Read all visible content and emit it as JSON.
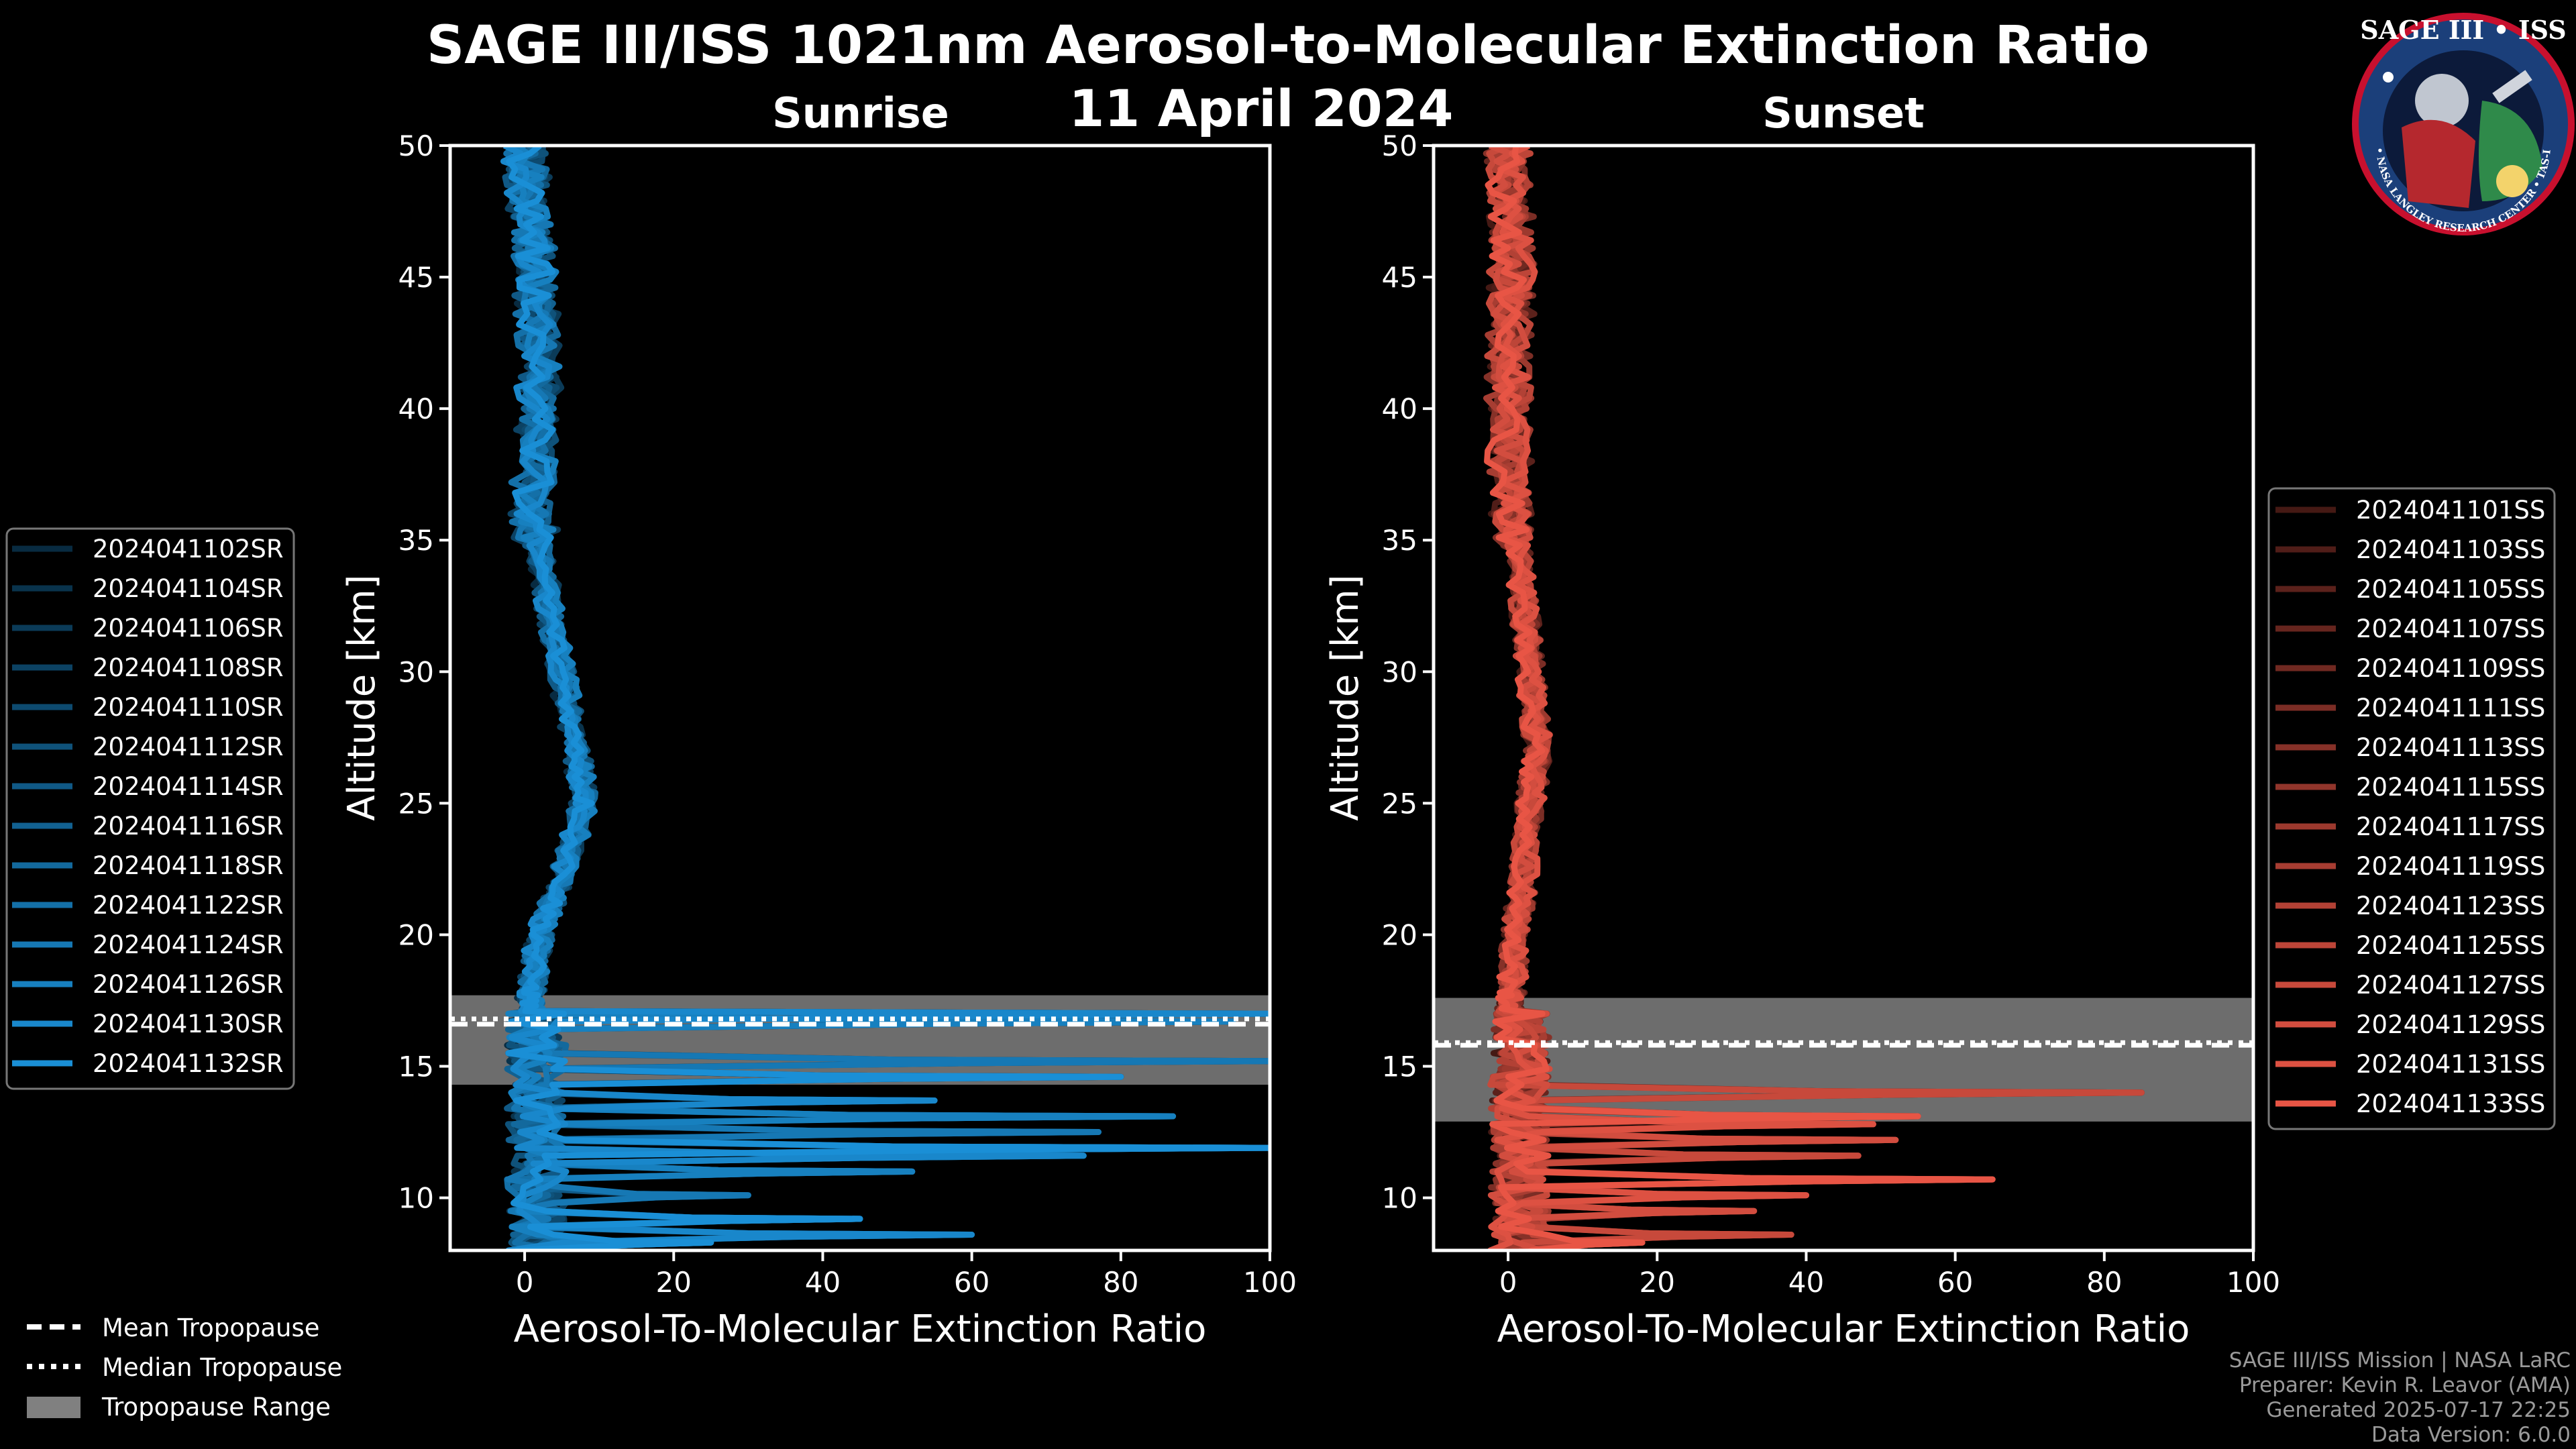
{
  "title": "SAGE III/ISS 1021nm Aerosol-to-Molecular Extinction Ratio",
  "date": "11 April 2024",
  "logo": {
    "text": "SAGE III • ISS",
    "ring": "BALL • NASA LANGLEY RESEARCH CENTER • TAS-I • ESA",
    "colors": {
      "ring": "#1b3f7a",
      "border": "#c8102e",
      "sky": "#9fd3ef",
      "land": "#2f8a4a"
    }
  },
  "credits": [
    "SAGE III/ISS Mission | NASA LaRC",
    "Preparer: Kevin R. Leavor (AMA)",
    "Generated 2025-07-17 22:25",
    "Data Version: 6.0.0"
  ],
  "shared_legend": {
    "mean": "Mean Tropopause",
    "median": "Median Tropopause",
    "range": "Tropopause Range",
    "range_color": "#808080"
  },
  "chart_data": [
    {
      "type": "line",
      "title": "Sunrise",
      "xlabel": "Aerosol-To-Molecular Extinction Ratio",
      "ylabel": "Altitude [km]",
      "xlim": [
        -10,
        100
      ],
      "ylim": [
        8,
        50
      ],
      "xticks": [
        0,
        20,
        40,
        60,
        80,
        100
      ],
      "yticks": [
        10,
        15,
        20,
        25,
        30,
        35,
        40,
        45,
        50
      ],
      "tropopause": {
        "mean_km": 16.6,
        "median_km": 16.8,
        "range_km": [
          14.3,
          17.7
        ]
      },
      "color_base": "#1a8fd6",
      "series_names": [
        "2024041102SR",
        "2024041104SR",
        "2024041106SR",
        "2024041108SR",
        "2024041110SR",
        "2024041112SR",
        "2024041114SR",
        "2024041116SR",
        "2024041118SR",
        "2024041122SR",
        "2024041124SR",
        "2024041126SR",
        "2024041130SR",
        "2024041132SR"
      ],
      "upper_profile_km": [
        [
          50,
          0
        ],
        [
          47,
          1
        ],
        [
          44,
          1.5
        ],
        [
          40,
          2
        ],
        [
          36,
          1
        ],
        [
          33,
          3
        ],
        [
          30,
          5
        ],
        [
          27,
          7
        ],
        [
          25,
          8
        ],
        [
          22,
          5
        ],
        [
          20,
          2
        ],
        [
          18,
          1
        ],
        [
          17,
          0.5
        ]
      ],
      "low_spikes": [
        {
          "alt": 17.1,
          "peak": 100
        },
        {
          "alt": 16.7,
          "peak": 95
        },
        {
          "alt": 15.2,
          "peak": 100
        },
        {
          "alt": 14.7,
          "peak": 80
        },
        {
          "alt": 13.7,
          "peak": 55
        },
        {
          "alt": 13.2,
          "peak": 87
        },
        {
          "alt": 12.4,
          "peak": 77
        },
        {
          "alt": 12.0,
          "peak": 100
        },
        {
          "alt": 11.5,
          "peak": 75
        },
        {
          "alt": 11.0,
          "peak": 52
        },
        {
          "alt": 10.2,
          "peak": 30
        },
        {
          "alt": 9.2,
          "peak": 45
        },
        {
          "alt": 8.5,
          "peak": 60
        },
        {
          "alt": 8.2,
          "peak": 25
        }
      ]
    },
    {
      "type": "line",
      "title": "Sunset",
      "xlabel": "Aerosol-To-Molecular Extinction Ratio",
      "ylabel": "Altitude [km]",
      "xlim": [
        -10,
        100
      ],
      "ylim": [
        8,
        50
      ],
      "xticks": [
        0,
        20,
        40,
        60,
        80,
        100
      ],
      "yticks": [
        10,
        15,
        20,
        25,
        30,
        35,
        40,
        45,
        50
      ],
      "tropopause": {
        "mean_km": 15.8,
        "median_km": 15.9,
        "range_km": [
          12.9,
          17.6
        ]
      },
      "color_base": "#e85545",
      "series_names": [
        "2024041101SS",
        "2024041103SS",
        "2024041105SS",
        "2024041107SS",
        "2024041109SS",
        "2024041111SS",
        "2024041113SS",
        "2024041115SS",
        "2024041117SS",
        "2024041119SS",
        "2024041123SS",
        "2024041125SS",
        "2024041127SS",
        "2024041129SS",
        "2024041131SS",
        "2024041133SS"
      ],
      "upper_profile_km": [
        [
          50,
          0
        ],
        [
          47,
          0.5
        ],
        [
          44,
          0.5
        ],
        [
          40,
          0
        ],
        [
          36,
          0.5
        ],
        [
          33,
          2
        ],
        [
          30,
          3
        ],
        [
          27,
          4
        ],
        [
          25,
          3
        ],
        [
          22,
          2
        ],
        [
          20,
          1
        ],
        [
          18,
          0.5
        ],
        [
          17,
          0.3
        ]
      ],
      "low_spikes": [
        {
          "alt": 14.0,
          "peak": 85
        },
        {
          "alt": 13.1,
          "peak": 55
        },
        {
          "alt": 12.8,
          "peak": 49
        },
        {
          "alt": 12.2,
          "peak": 52
        },
        {
          "alt": 11.5,
          "peak": 47
        },
        {
          "alt": 10.8,
          "peak": 65
        },
        {
          "alt": 10.2,
          "peak": 40
        },
        {
          "alt": 9.5,
          "peak": 33
        },
        {
          "alt": 8.7,
          "peak": 38
        },
        {
          "alt": 8.3,
          "peak": 18
        }
      ]
    }
  ]
}
